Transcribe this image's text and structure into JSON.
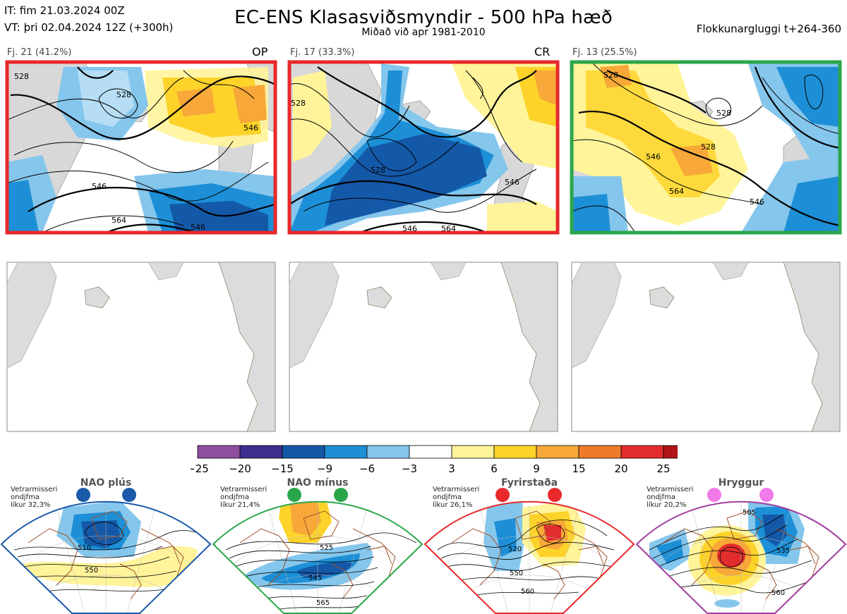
{
  "header": {
    "it_line": "IT: fim 21.03.2024 00Z",
    "vt_line": "VT: þri 02.04.2024 12Z  (+300h)",
    "title": "EC-ENS Klasasviðsmyndir - 500 hPa hæð",
    "subtitle": "Miðað við apr 1981-2010",
    "window": "Flokkunargluggi t+264-360"
  },
  "clusters": [
    {
      "label": "Fj. 21 (41.2%)",
      "tag": "OP",
      "border_color": "#e8282b",
      "contours": [
        "528",
        "546",
        "546",
        "564",
        "546",
        "528"
      ]
    },
    {
      "label": "Fj. 17 (33.3%)",
      "tag": "CR",
      "border_color": "#e8282b",
      "contours": [
        "528",
        "546",
        "546",
        "564",
        "528"
      ]
    },
    {
      "label": "Fj. 13 (25.5%)",
      "tag": "",
      "border_color": "#2aa64a",
      "contours": [
        "528",
        "528",
        "546",
        "564",
        "546",
        "528"
      ]
    }
  ],
  "colorbar": {
    "colors": [
      "#8d4e9f",
      "#3c2f8f",
      "#1458a8",
      "#1d8fd6",
      "#85c6ec",
      "#ffffff",
      "#fff49a",
      "#fdd32a",
      "#f7a838",
      "#ef7a2c",
      "#e32d2d",
      "#b01418"
    ],
    "ticks": [
      "−25",
      "−20",
      "−15",
      "−9",
      "−6",
      "−3",
      "3",
      "6",
      "9",
      "15",
      "20",
      "25"
    ]
  },
  "regimes": [
    {
      "name": "NAO plús",
      "desc": [
        "Vetrarmisseri",
        "ondjfma",
        "líkur 32,3%"
      ],
      "color": "#1a5aa8",
      "labels": [
        "510",
        "550"
      ]
    },
    {
      "name": "NAO mínus",
      "desc": [
        "Vetrarmisseri",
        "ondjfma",
        "líkur 21,4%"
      ],
      "color": "#2aa64a",
      "labels": [
        "525",
        "545",
        "565"
      ]
    },
    {
      "name": "Fyrirstaða",
      "desc": [
        "Vetrarmisseri",
        "ondjfma",
        "líkur 26,1%"
      ],
      "color": "#e8282b",
      "labels": [
        "520",
        "550",
        "560"
      ]
    },
    {
      "name": "Hryggur",
      "desc": [
        "Vetrarmisseri",
        "ondjfma",
        "líkur 20,2%"
      ],
      "color": "#a03ca0",
      "labels": [
        "505",
        "535",
        "560"
      ]
    }
  ]
}
